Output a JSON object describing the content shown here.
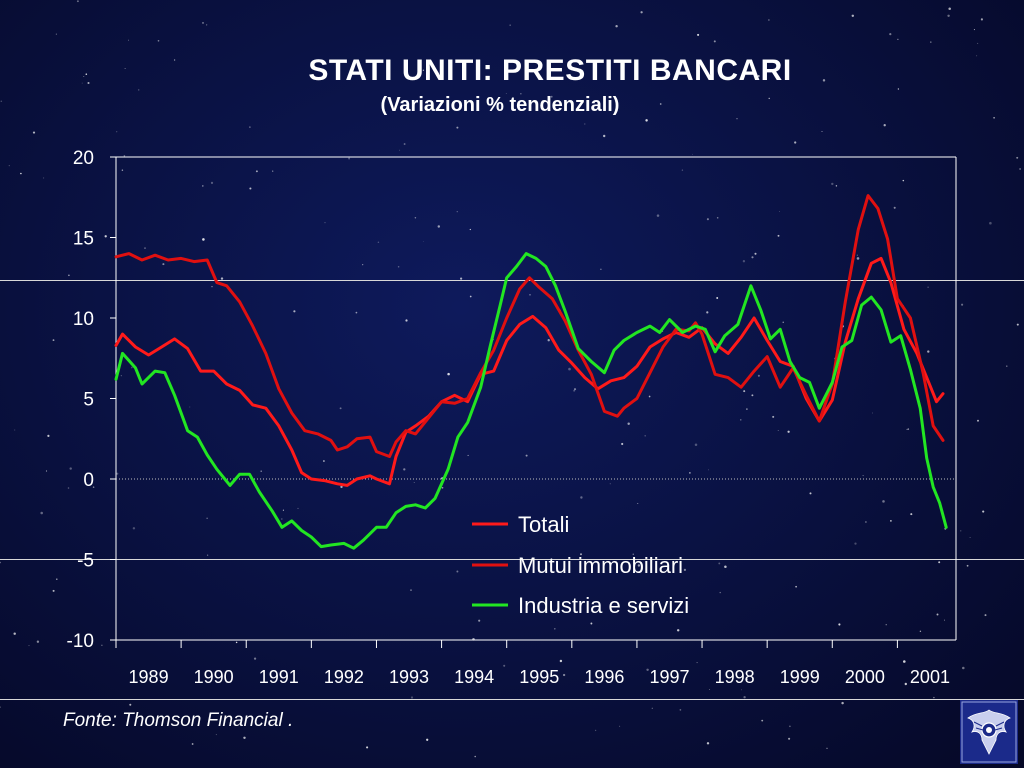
{
  "slide": {
    "title": "STATI UNITI: PRESTITI BANCARI",
    "subtitle": "(Variazioni % tendenziali)",
    "source": "Fonte: Thomson Financial ."
  },
  "colors": {
    "totali": "#ff1a1a",
    "mutui": "#e01010",
    "industria": "#22e622",
    "axis": "#ffffff"
  },
  "chart_data": {
    "type": "line",
    "title": "STATI UNITI: PRESTITI BANCARI",
    "subtitle": "(Variazioni % tendenziali)",
    "xlabel": "",
    "ylabel": "",
    "xlim": [
      1989.0,
      2001.9
    ],
    "ylim": [
      -10,
      20
    ],
    "yticks": [
      -10,
      -5,
      0,
      5,
      10,
      15,
      20
    ],
    "xticks": [
      "1989",
      "1990",
      "1991",
      "1992",
      "1993",
      "1994",
      "1995",
      "1996",
      "1997",
      "1998",
      "1999",
      "2000",
      "2001"
    ],
    "grid": false,
    "legend_position": "center-right",
    "series": [
      {
        "name": "Totali",
        "points": [
          [
            1989.0,
            8.3
          ],
          [
            1989.1,
            9.0
          ],
          [
            1989.3,
            8.2
          ],
          [
            1989.5,
            7.7
          ],
          [
            1989.7,
            8.2
          ],
          [
            1989.9,
            8.7
          ],
          [
            1990.1,
            8.1
          ],
          [
            1990.3,
            6.7
          ],
          [
            1990.5,
            6.7
          ],
          [
            1990.7,
            5.9
          ],
          [
            1990.9,
            5.5
          ],
          [
            1991.1,
            4.6
          ],
          [
            1991.3,
            4.4
          ],
          [
            1991.5,
            3.3
          ],
          [
            1991.7,
            1.8
          ],
          [
            1991.85,
            0.4
          ],
          [
            1992.0,
            0.0
          ],
          [
            1992.2,
            -0.1
          ],
          [
            1992.4,
            -0.3
          ],
          [
            1992.55,
            -0.4
          ],
          [
            1992.7,
            0.0
          ],
          [
            1992.9,
            0.2
          ],
          [
            1993.0,
            0.0
          ],
          [
            1993.2,
            -0.3
          ],
          [
            1993.3,
            1.4
          ],
          [
            1993.45,
            2.9
          ],
          [
            1993.6,
            3.3
          ],
          [
            1993.8,
            3.9
          ],
          [
            1994.0,
            4.8
          ],
          [
            1994.2,
            5.2
          ],
          [
            1994.4,
            4.8
          ],
          [
            1994.6,
            6.5
          ],
          [
            1994.8,
            6.7
          ],
          [
            1995.0,
            8.6
          ],
          [
            1995.2,
            9.6
          ],
          [
            1995.4,
            10.1
          ],
          [
            1995.6,
            9.4
          ],
          [
            1995.8,
            8.0
          ],
          [
            1996.0,
            7.2
          ],
          [
            1996.2,
            6.3
          ],
          [
            1996.4,
            5.6
          ],
          [
            1996.6,
            6.1
          ],
          [
            1996.8,
            6.3
          ],
          [
            1997.0,
            7.0
          ],
          [
            1997.2,
            8.2
          ],
          [
            1997.4,
            8.7
          ],
          [
            1997.6,
            9.1
          ],
          [
            1997.8,
            8.8
          ],
          [
            1998.0,
            9.4
          ],
          [
            1998.2,
            8.4
          ],
          [
            1998.4,
            7.8
          ],
          [
            1998.6,
            8.8
          ],
          [
            1998.8,
            10.0
          ],
          [
            1999.0,
            8.6
          ],
          [
            1999.2,
            7.3
          ],
          [
            1999.4,
            7.0
          ],
          [
            1999.6,
            5.0
          ],
          [
            1999.8,
            3.6
          ],
          [
            2000.0,
            4.9
          ],
          [
            2000.2,
            8.5
          ],
          [
            2000.4,
            11.2
          ],
          [
            2000.6,
            13.4
          ],
          [
            2000.75,
            13.7
          ],
          [
            2000.9,
            12.2
          ],
          [
            2001.1,
            9.3
          ],
          [
            2001.3,
            7.8
          ],
          [
            2001.5,
            5.8
          ],
          [
            2001.6,
            4.8
          ],
          [
            2001.7,
            5.3
          ]
        ]
      },
      {
        "name": "Mutui immobiliari",
        "points": [
          [
            1989.0,
            13.8
          ],
          [
            1989.2,
            14.0
          ],
          [
            1989.4,
            13.6
          ],
          [
            1989.6,
            13.9
          ],
          [
            1989.8,
            13.6
          ],
          [
            1990.0,
            13.7
          ],
          [
            1990.2,
            13.5
          ],
          [
            1990.4,
            13.6
          ],
          [
            1990.55,
            12.2
          ],
          [
            1990.7,
            12.0
          ],
          [
            1990.9,
            11.0
          ],
          [
            1991.1,
            9.5
          ],
          [
            1991.3,
            7.8
          ],
          [
            1991.5,
            5.6
          ],
          [
            1991.7,
            4.1
          ],
          [
            1991.9,
            3.0
          ],
          [
            1992.1,
            2.8
          ],
          [
            1992.3,
            2.4
          ],
          [
            1992.4,
            1.8
          ],
          [
            1992.55,
            2.0
          ],
          [
            1992.7,
            2.5
          ],
          [
            1992.9,
            2.6
          ],
          [
            1993.0,
            1.7
          ],
          [
            1993.2,
            1.4
          ],
          [
            1993.3,
            2.3
          ],
          [
            1993.45,
            3.0
          ],
          [
            1993.6,
            2.8
          ],
          [
            1993.8,
            3.8
          ],
          [
            1994.0,
            4.8
          ],
          [
            1994.2,
            4.7
          ],
          [
            1994.4,
            5.0
          ],
          [
            1994.6,
            6.6
          ],
          [
            1994.8,
            8.0
          ],
          [
            1995.0,
            10.0
          ],
          [
            1995.2,
            11.8
          ],
          [
            1995.35,
            12.5
          ],
          [
            1995.5,
            11.9
          ],
          [
            1995.7,
            11.2
          ],
          [
            1995.9,
            9.8
          ],
          [
            1996.1,
            8.0
          ],
          [
            1996.3,
            6.5
          ],
          [
            1996.5,
            4.2
          ],
          [
            1996.7,
            3.9
          ],
          [
            1996.8,
            4.4
          ],
          [
            1997.0,
            5.0
          ],
          [
            1997.2,
            6.6
          ],
          [
            1997.4,
            8.2
          ],
          [
            1997.6,
            9.3
          ],
          [
            1997.8,
            9.2
          ],
          [
            1997.9,
            9.7
          ],
          [
            1998.0,
            9.0
          ],
          [
            1998.2,
            6.5
          ],
          [
            1998.4,
            6.3
          ],
          [
            1998.6,
            5.7
          ],
          [
            1998.8,
            6.7
          ],
          [
            1999.0,
            7.6
          ],
          [
            1999.2,
            5.7
          ],
          [
            1999.4,
            6.9
          ],
          [
            1999.6,
            5.2
          ],
          [
            1999.8,
            3.6
          ],
          [
            2000.0,
            5.9
          ],
          [
            2000.2,
            11.0
          ],
          [
            2000.4,
            15.5
          ],
          [
            2000.55,
            17.6
          ],
          [
            2000.7,
            16.8
          ],
          [
            2000.85,
            14.9
          ],
          [
            2001.0,
            11.2
          ],
          [
            2001.2,
            10.0
          ],
          [
            2001.4,
            6.5
          ],
          [
            2001.55,
            3.3
          ],
          [
            2001.7,
            2.4
          ]
        ]
      },
      {
        "name": "Industria e servizi",
        "points": [
          [
            1989.0,
            6.2
          ],
          [
            1989.1,
            7.8
          ],
          [
            1989.3,
            6.9
          ],
          [
            1989.4,
            5.9
          ],
          [
            1989.6,
            6.7
          ],
          [
            1989.75,
            6.6
          ],
          [
            1989.9,
            5.2
          ],
          [
            1990.1,
            3.0
          ],
          [
            1990.25,
            2.6
          ],
          [
            1990.4,
            1.5
          ],
          [
            1990.55,
            0.6
          ],
          [
            1990.75,
            -0.4
          ],
          [
            1990.9,
            0.3
          ],
          [
            1991.05,
            0.3
          ],
          [
            1991.2,
            -0.8
          ],
          [
            1991.4,
            -2.0
          ],
          [
            1991.55,
            -3.0
          ],
          [
            1991.7,
            -2.6
          ],
          [
            1991.85,
            -3.2
          ],
          [
            1992.0,
            -3.6
          ],
          [
            1992.15,
            -4.2
          ],
          [
            1992.3,
            -4.1
          ],
          [
            1992.5,
            -4.0
          ],
          [
            1992.65,
            -4.3
          ],
          [
            1992.8,
            -3.8
          ],
          [
            1993.0,
            -3.0
          ],
          [
            1993.15,
            -3.0
          ],
          [
            1993.3,
            -2.1
          ],
          [
            1993.45,
            -1.7
          ],
          [
            1993.6,
            -1.6
          ],
          [
            1993.75,
            -1.8
          ],
          [
            1993.9,
            -1.2
          ],
          [
            1994.1,
            0.6
          ],
          [
            1994.25,
            2.6
          ],
          [
            1994.4,
            3.5
          ],
          [
            1994.6,
            5.7
          ],
          [
            1994.75,
            8.3
          ],
          [
            1994.9,
            10.8
          ],
          [
            1995.0,
            12.5
          ],
          [
            1995.15,
            13.2
          ],
          [
            1995.3,
            14.0
          ],
          [
            1995.45,
            13.7
          ],
          [
            1995.6,
            13.2
          ],
          [
            1995.75,
            12.0
          ],
          [
            1995.9,
            10.4
          ],
          [
            1996.1,
            8.1
          ],
          [
            1996.3,
            7.3
          ],
          [
            1996.5,
            6.6
          ],
          [
            1996.65,
            8.0
          ],
          [
            1996.8,
            8.6
          ],
          [
            1997.0,
            9.1
          ],
          [
            1997.2,
            9.5
          ],
          [
            1997.35,
            9.1
          ],
          [
            1997.5,
            9.9
          ],
          [
            1997.7,
            9.1
          ],
          [
            1997.9,
            9.5
          ],
          [
            1998.05,
            9.3
          ],
          [
            1998.2,
            7.9
          ],
          [
            1998.35,
            8.9
          ],
          [
            1998.55,
            9.6
          ],
          [
            1998.75,
            12.0
          ],
          [
            1998.9,
            10.5
          ],
          [
            1999.05,
            8.7
          ],
          [
            1999.2,
            9.3
          ],
          [
            1999.35,
            7.3
          ],
          [
            1999.5,
            6.3
          ],
          [
            1999.65,
            6.0
          ],
          [
            1999.8,
            4.4
          ],
          [
            2000.0,
            6.0
          ],
          [
            2000.15,
            8.2
          ],
          [
            2000.3,
            8.6
          ],
          [
            2000.45,
            10.8
          ],
          [
            2000.6,
            11.3
          ],
          [
            2000.75,
            10.5
          ],
          [
            2000.9,
            8.5
          ],
          [
            2001.05,
            8.9
          ],
          [
            2001.2,
            6.8
          ],
          [
            2001.35,
            4.4
          ],
          [
            2001.45,
            1.3
          ],
          [
            2001.55,
            -0.5
          ],
          [
            2001.65,
            -1.5
          ],
          [
            2001.75,
            -3.0
          ]
        ]
      }
    ]
  }
}
